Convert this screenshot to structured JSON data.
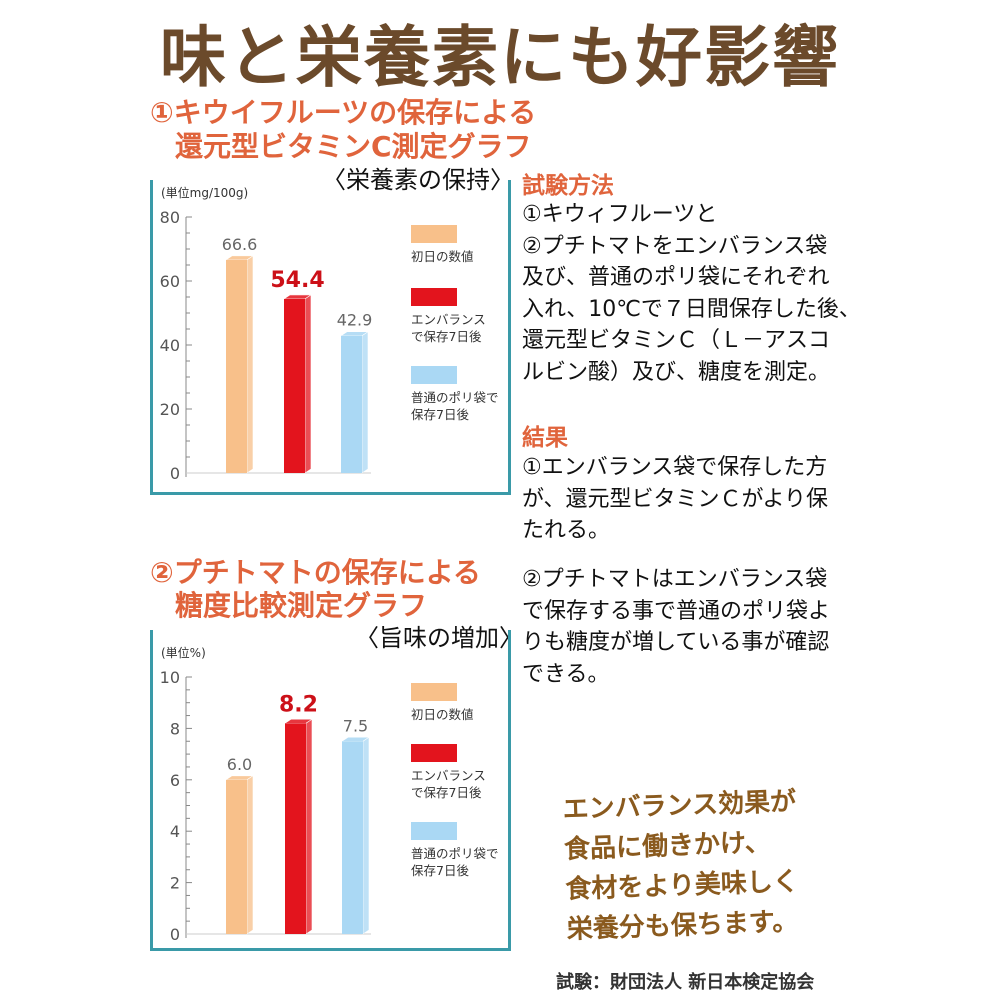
{
  "page_title": "味と栄養素にも好影響",
  "chart_data": [
    {
      "type": "bar",
      "title_line1": "①キウイフルーツの保存による",
      "title_line2": "還元型ビタミンC測定グラフ",
      "subtitle": "〈栄養素の保持〉",
      "unit": "(単位mg/100g)",
      "ylim": [
        0,
        80
      ],
      "yticks": [
        0,
        20,
        40,
        60,
        80
      ],
      "series": [
        {
          "name": "初日の数値",
          "value": 66.6,
          "label": "66.6",
          "color": "#f8c08a",
          "highlight": false
        },
        {
          "name": "エンバランスで保存7日後",
          "value": 54.4,
          "label": "54.4",
          "color": "#e3141d",
          "highlight": true
        },
        {
          "name": "普通のポリ袋で保存7日後",
          "value": 42.9,
          "label": "42.9",
          "color": "#aad8f4",
          "highlight": false
        }
      ],
      "legend": [
        {
          "line1": "初日の数値",
          "line2": "",
          "color": "#f8c08a"
        },
        {
          "line1": "エンバランス",
          "line2": "で保存7日後",
          "color": "#e3141d"
        },
        {
          "line1": "普通のポリ袋で",
          "line2": "保存7日後",
          "color": "#aad8f4"
        }
      ]
    },
    {
      "type": "bar",
      "title_line1": "②プチトマトの保存による",
      "title_line2": "糖度比較測定グラフ",
      "subtitle": "〈旨味の増加〉",
      "unit": "(単位%)",
      "ylim": [
        0,
        10
      ],
      "yticks": [
        0,
        2,
        4,
        6,
        8,
        10
      ],
      "series": [
        {
          "name": "初日の数値",
          "value": 6.0,
          "label": "6.0",
          "color": "#f8c08a",
          "highlight": false
        },
        {
          "name": "エンバランスで保存7日後",
          "value": 8.2,
          "label": "8.2",
          "color": "#e3141d",
          "highlight": true
        },
        {
          "name": "普通のポリ袋で保存7日後",
          "value": 7.5,
          "label": "7.5",
          "color": "#aad8f4",
          "highlight": false
        }
      ],
      "legend": [
        {
          "line1": "初日の数値",
          "line2": "",
          "color": "#f8c08a"
        },
        {
          "line1": "エンバランス",
          "line2": "で保存7日後",
          "color": "#e3141d"
        },
        {
          "line1": "普通のポリ袋で",
          "line2": "保存7日後",
          "color": "#aad8f4"
        }
      ]
    }
  ],
  "method": {
    "heading": "試験方法",
    "lines": [
      "①キウィフルーツと",
      "②プチトマトをエンバランス袋",
      "及び、普通のポリ袋にそれぞれ",
      "入れ、10℃で７日間保存した後、",
      "還元型ビタミンＣ（Ｌ－アスコ",
      "ルビン酸）及び、糖度を測定。"
    ]
  },
  "result": {
    "heading": "結果",
    "lines1": [
      "①エンバランス袋で保存した方",
      "が、還元型ビタミンＣがより保",
      "たれる。"
    ],
    "lines2": [
      "②プチトマトはエンバランス袋",
      "で保存する事で普通のポリ袋よ",
      "りも糖度が増している事が確認",
      "できる。"
    ]
  },
  "note_lines": [
    "エンバランス効果が",
    "食品に働きかけ、",
    "食材をより美味しく",
    "栄養分も保ちます。"
  ],
  "credit": "試験：財団法人 新日本検定協会"
}
